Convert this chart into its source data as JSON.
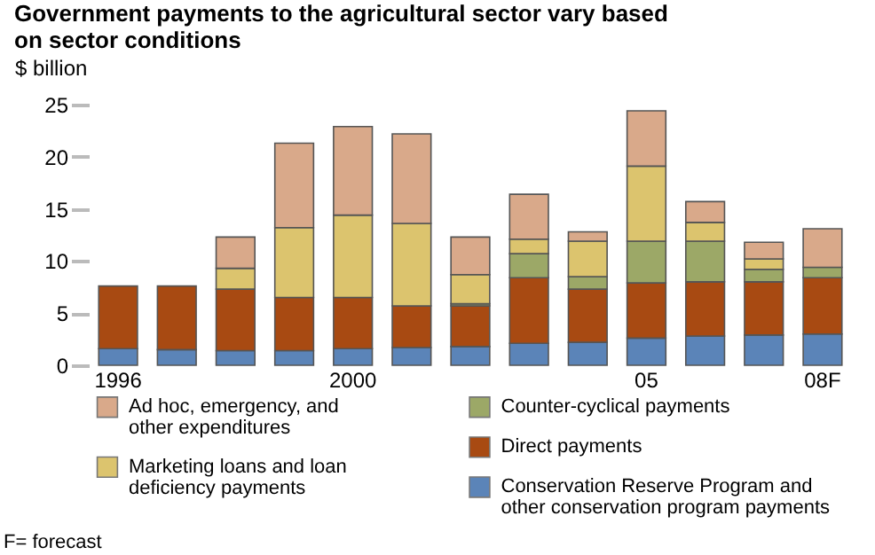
{
  "chart_data": {
    "type": "bar",
    "title": "Government payments to the agricultural sector vary based on sector conditions",
    "ylabel": "$ billion",
    "categories": [
      "1996",
      null,
      null,
      null,
      "2000",
      null,
      null,
      null,
      null,
      "05",
      null,
      null,
      "08F"
    ],
    "stacked": true,
    "ylim": [
      0,
      25
    ],
    "yticks": [
      0,
      5,
      10,
      15,
      20,
      25
    ],
    "grid": false,
    "legend": "bottom",
    "series": [
      {
        "name": "Conservation Reserve Program and other conservation program payments",
        "color": "#5b84b8",
        "values": [
          1.6,
          1.5,
          1.4,
          1.4,
          1.6,
          1.7,
          1.8,
          2.1,
          2.2,
          2.6,
          2.8,
          2.9,
          3.0
        ]
      },
      {
        "name": "Direct payments",
        "color": "#a84a12",
        "values": [
          6.0,
          6.1,
          5.9,
          5.1,
          4.9,
          4.0,
          3.9,
          6.3,
          5.1,
          5.3,
          5.2,
          5.1,
          5.4
        ]
      },
      {
        "name": "Counter-cyclical payments",
        "color": "#9ca867",
        "values": [
          null,
          null,
          null,
          null,
          null,
          null,
          0.2,
          2.3,
          1.2,
          4.0,
          3.9,
          1.2,
          1.0
        ]
      },
      {
        "name": "Marketing loans and loan deficiency payments",
        "color": "#dcc46e",
        "values": [
          null,
          null,
          2.0,
          6.7,
          7.9,
          7.9,
          2.8,
          1.4,
          3.4,
          7.2,
          1.8,
          1.0,
          null
        ]
      },
      {
        "name": "Ad hoc, emergency, and other expenditures",
        "color": "#d9a98a",
        "values": [
          null,
          null,
          3.0,
          8.1,
          8.5,
          8.6,
          3.6,
          4.3,
          0.9,
          5.3,
          2.0,
          1.6,
          3.7
        ]
      }
    ],
    "annotations": [
      "F= forecast"
    ]
  }
}
